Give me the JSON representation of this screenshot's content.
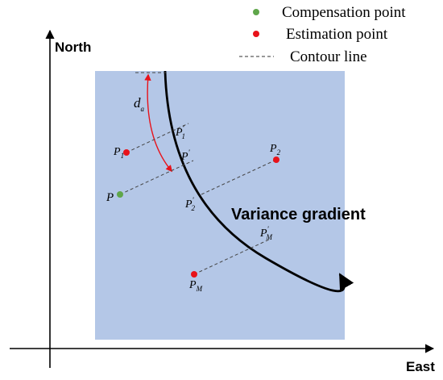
{
  "legend": {
    "compensation": {
      "label": "Compensation point",
      "color": "#5fa64a"
    },
    "estimation": {
      "label": "Estimation point",
      "color": "#e8121a"
    },
    "contour": {
      "label": "Contour line"
    }
  },
  "axes": {
    "y_label": "North",
    "x_label": "East"
  },
  "field": {
    "color": "#b4c7e7"
  },
  "curve_label": "Variance gradient",
  "distance_label": {
    "main": "d",
    "sub": "a"
  },
  "points": {
    "p1": {
      "main": "P",
      "sub": "1"
    },
    "p1_proj": {
      "main": "P",
      "sup": "'",
      "sub": "1"
    },
    "p_proj": {
      "main": "P",
      "sup": "'"
    },
    "p2": {
      "main": "P",
      "sub": "2"
    },
    "p": {
      "main": "P"
    },
    "p2_proj": {
      "main": "P",
      "sup": "'",
      "sub": "2"
    },
    "pm_proj": {
      "main": "P",
      "sup": "'",
      "sub": "M"
    },
    "pm": {
      "main": "P",
      "sub": "M"
    }
  },
  "arrow_color": "#e8121a"
}
